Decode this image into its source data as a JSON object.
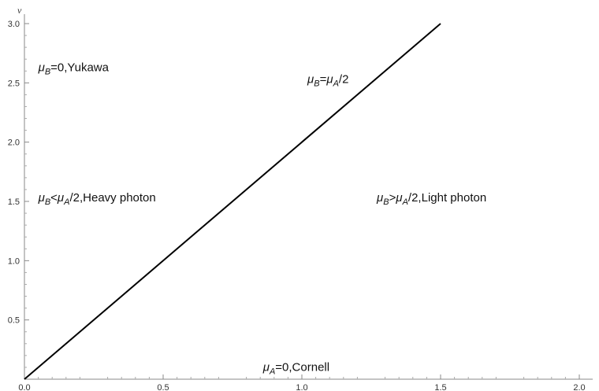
{
  "chart_data": {
    "type": "line",
    "title": "",
    "xlabel": "",
    "ylabel": "v",
    "xlim": [
      0,
      2.0
    ],
    "ylim": [
      0,
      3.0
    ],
    "x_ticks": [
      "0.0",
      "0.5",
      "1.0",
      "1.5",
      "2.0"
    ],
    "y_ticks": [
      "0.5",
      "1.0",
      "1.5",
      "2.0",
      "2.5",
      "3.0"
    ],
    "grid": false,
    "series": [
      {
        "x": [
          0,
          1.5
        ],
        "y": [
          0,
          3.0
        ],
        "color": "#000000"
      }
    ],
    "annotations": [
      {
        "pre": "μ",
        "sub": "B",
        "post": "=0,Yukawa",
        "x": 0.05,
        "y": 2.6
      },
      {
        "pre": "μ",
        "sub": "B",
        "post": "=μ",
        "sub2": "A",
        "post2": "/2",
        "x": 1.02,
        "y": 2.5
      },
      {
        "pre": "μ",
        "sub": "B",
        "post": "<μ",
        "sub2": "A",
        "post2": "/2,Heavy photon",
        "x": 0.05,
        "y": 1.5
      },
      {
        "pre": "μ",
        "sub": "B",
        "post": ">μ",
        "sub2": "A",
        "post2": "/2,Light photon",
        "x": 1.27,
        "y": 1.5
      },
      {
        "pre": "μ",
        "sub": "A",
        "post": "=0,Cornell",
        "x": 0.86,
        "y": 0.07
      }
    ]
  }
}
